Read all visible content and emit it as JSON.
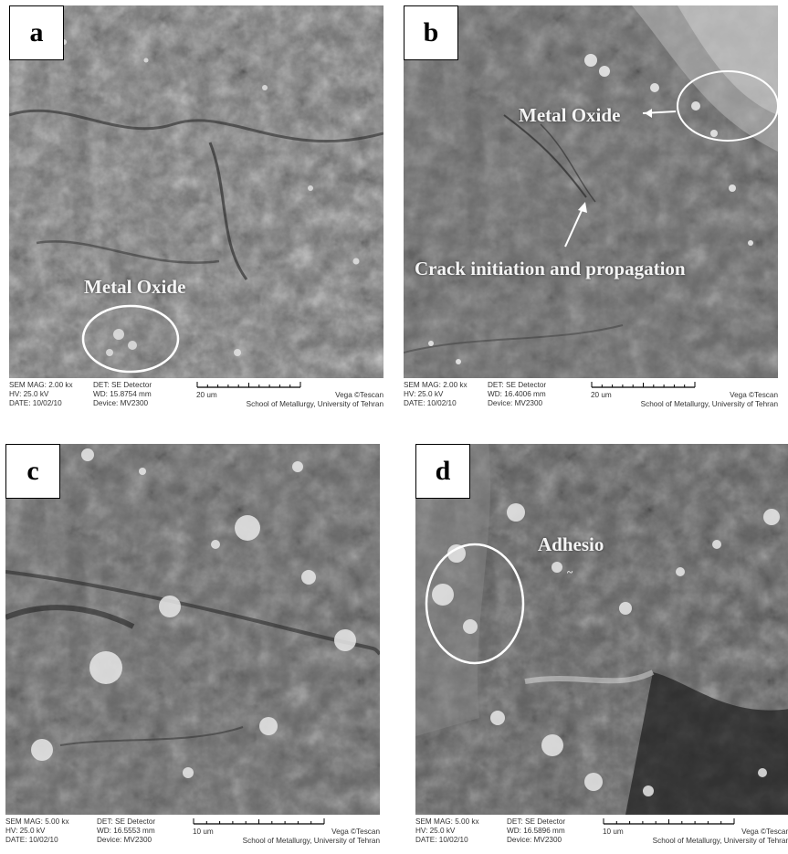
{
  "panels": [
    {
      "label": "a",
      "annotations": [
        "Metal Oxide"
      ],
      "info": {
        "mag": "SEM MAG: 2.00 kx",
        "hv": "HV:  25.0 kV",
        "date": "DATE: 10/02/10",
        "det": "DET: SE Detector",
        "wd": "WD: 15.8754 mm",
        "device": "Device: MV2300",
        "scale": "20 um",
        "brand": "Vega ©Tescan",
        "institution": "School of Metallurgy, University of Tehran"
      }
    },
    {
      "label": "b",
      "annotations": [
        "Metal Oxide",
        "Crack initiation and propagation"
      ],
      "info": {
        "mag": "SEM MAG: 2.00 kx",
        "hv": "HV:  25.0 kV",
        "date": "DATE: 10/02/10",
        "det": "DET: SE Detector",
        "wd": "WD: 16.4006 mm",
        "device": "Device: MV2300",
        "scale": "20 um",
        "brand": "Vega ©Tescan",
        "institution": "School of Metallurgy, University of Tehran"
      }
    },
    {
      "label": "c",
      "annotations": [],
      "info": {
        "mag": "SEM MAG: 5.00 kx",
        "hv": "HV:  25.0 kV",
        "date": "DATE: 10/02/10",
        "det": "DET: SE Detector",
        "wd": "WD: 16.5553 mm",
        "device": "Device: MV2300",
        "scale": "10 um",
        "brand": "Vega ©Tescan",
        "institution": "School of Metallurgy, University of Tehran"
      }
    },
    {
      "label": "d",
      "annotations": [
        "Adhesio"
      ],
      "info": {
        "mag": "SEM MAG: 5.00 kx",
        "hv": "HV:  25.0 kV",
        "date": "DATE: 10/02/10",
        "det": "DET: SE Detector",
        "wd": "WD: 16.5896 mm",
        "device": "Device: MV2300",
        "scale": "10 um",
        "brand": "Vega ©Tescan",
        "institution": "School of Metallurgy, University of Tehran"
      }
    }
  ]
}
